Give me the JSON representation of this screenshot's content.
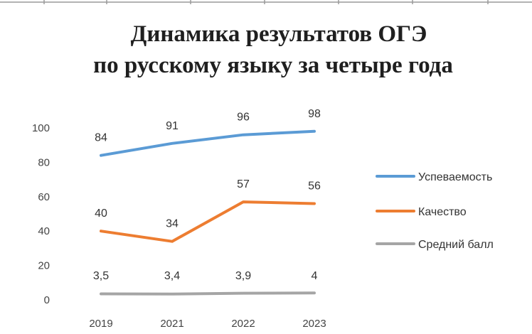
{
  "chart_data": {
    "type": "line",
    "title": [
      "Динамика результатов ОГЭ",
      "по русскому языку за четыре года"
    ],
    "categories": [
      "2019",
      "2021",
      "2022",
      "2023"
    ],
    "ylim": [
      0,
      100
    ],
    "yticks": [
      "0",
      "20",
      "40",
      "60",
      "80",
      "100"
    ],
    "grid": false,
    "legend_position": "right",
    "series": [
      {
        "name": "Успеваемость",
        "values": [
          84,
          91,
          96,
          98
        ],
        "labels": [
          "84",
          "91",
          "96",
          "98"
        ],
        "color": "#5b9bd5"
      },
      {
        "name": "Качество",
        "values": [
          40,
          34,
          57,
          56
        ],
        "labels": [
          "40",
          "34",
          "57",
          "56"
        ],
        "color": "#ed7d31"
      },
      {
        "name": "Средний балл",
        "values": [
          3.5,
          3.4,
          3.9,
          4
        ],
        "labels": [
          "3,5",
          "3,4",
          "3,9",
          "4"
        ],
        "color": "#a5a5a5"
      }
    ]
  }
}
